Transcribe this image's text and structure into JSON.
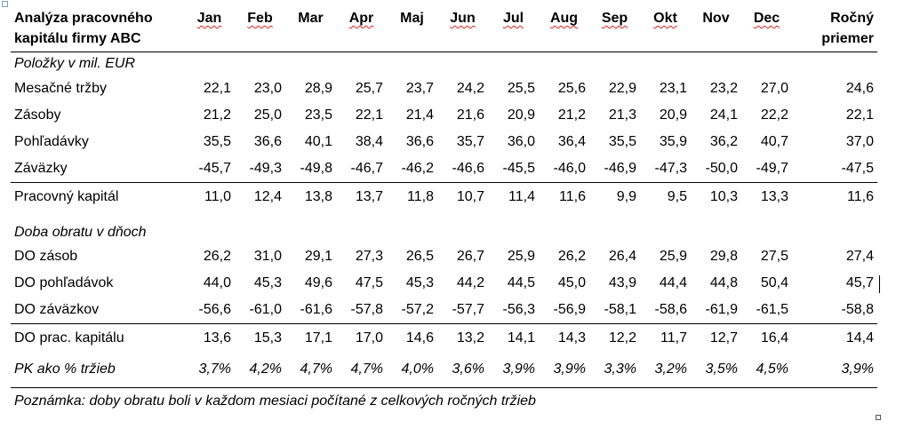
{
  "table": {
    "title_line1": "Analýza pracovného",
    "title_line2": "kapitálu firmy ABC",
    "months": [
      "Jan",
      "Feb",
      "Mar",
      "Apr",
      "Maj",
      "Jun",
      "Jul",
      "Aug",
      "Sep",
      "Okt",
      "Nov",
      "Dec"
    ],
    "annual_line1": "Ročný",
    "annual_line2": "priemer",
    "section1": "Položky v mil. EUR",
    "rows1": [
      {
        "label": "Mesačné tržby",
        "values": [
          "22,1",
          "23,0",
          "28,9",
          "25,7",
          "23,7",
          "24,2",
          "25,5",
          "25,6",
          "22,9",
          "23,1",
          "23,2",
          "27,0"
        ],
        "annual": "24,6"
      },
      {
        "label": "Zásoby",
        "values": [
          "21,2",
          "25,0",
          "23,5",
          "22,1",
          "21,4",
          "21,6",
          "20,9",
          "21,2",
          "21,3",
          "20,9",
          "24,1",
          "22,2"
        ],
        "annual": "22,1"
      },
      {
        "label": "Pohľadávky",
        "values": [
          "35,5",
          "36,6",
          "40,1",
          "38,4",
          "36,6",
          "35,7",
          "36,0",
          "36,4",
          "35,5",
          "35,9",
          "36,2",
          "40,7"
        ],
        "annual": "37,0"
      },
      {
        "label": "Záväzky",
        "values": [
          "-45,7",
          "-49,3",
          "-49,8",
          "-46,7",
          "-46,2",
          "-46,6",
          "-45,5",
          "-46,0",
          "-46,9",
          "-47,3",
          "-50,0",
          "-49,7"
        ],
        "annual": "-47,5"
      }
    ],
    "total1": {
      "label": "Pracovný kapitál",
      "values": [
        "11,0",
        "12,4",
        "13,8",
        "13,7",
        "11,8",
        "10,7",
        "11,4",
        "11,6",
        "9,9",
        "9,5",
        "10,3",
        "13,3"
      ],
      "annual": "11,6"
    },
    "section2": "Doba obratu v dňoch",
    "rows2": [
      {
        "label": "DO zásob",
        "values": [
          "26,2",
          "31,0",
          "29,1",
          "27,3",
          "26,5",
          "26,7",
          "25,9",
          "26,2",
          "26,4",
          "25,9",
          "29,8",
          "27,5"
        ],
        "annual": "27,4"
      },
      {
        "label": "DO pohľadávok",
        "values": [
          "44,0",
          "45,3",
          "49,6",
          "47,5",
          "45,3",
          "44,2",
          "44,5",
          "45,0",
          "43,9",
          "44,4",
          "44,8",
          "50,4"
        ],
        "annual": "45,7"
      },
      {
        "label": "DO záväzkov",
        "values": [
          "-56,6",
          "-61,0",
          "-61,6",
          "-57,8",
          "-57,2",
          "-57,7",
          "-56,3",
          "-56,9",
          "-58,1",
          "-58,6",
          "-61,9",
          "-61,5"
        ],
        "annual": "-58,8"
      }
    ],
    "total2": {
      "label": "DO prac. kapitálu",
      "values": [
        "13,6",
        "15,3",
        "17,1",
        "17,0",
        "14,6",
        "13,2",
        "14,1",
        "14,3",
        "12,2",
        "11,7",
        "12,7",
        "16,4"
      ],
      "annual": "14,4"
    },
    "pct": {
      "label": "PK ako % tržieb",
      "values": [
        "3,7%",
        "4,2%",
        "4,7%",
        "4,7%",
        "4,0%",
        "3,6%",
        "3,9%",
        "3,9%",
        "3,3%",
        "3,2%",
        "3,5%",
        "4,5%"
      ],
      "annual": "3,9%"
    },
    "note": "Poznámka: doby obratu boli v každom mesiaci počítané z celkových ročných tržieb"
  }
}
